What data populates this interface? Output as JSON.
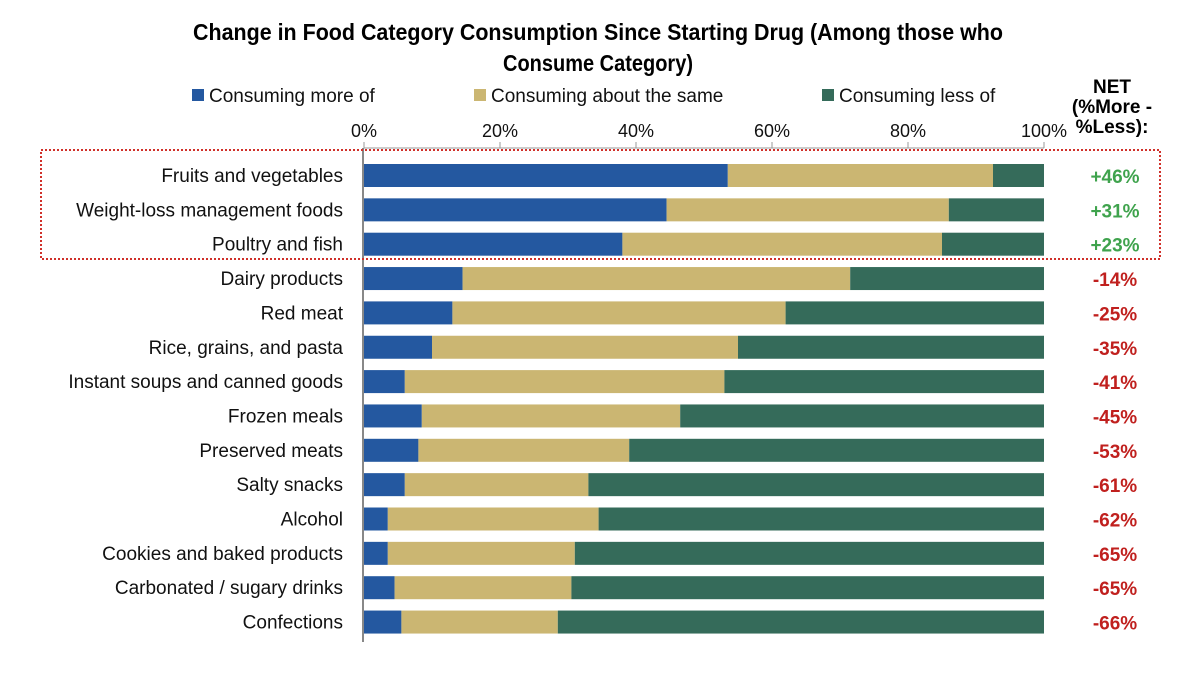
{
  "chart_data": {
    "type": "bar",
    "orientation": "horizontal",
    "stacked": true,
    "title_lines": [
      "Change in Food Category Consumption Since Starting Drug (Among those who",
      "Consume Category)"
    ],
    "xlabel": "",
    "ylabel": "",
    "xlim": [
      0,
      100
    ],
    "x_ticks": [
      "0%",
      "20%",
      "40%",
      "60%",
      "80%",
      "100%"
    ],
    "legend_position": "top",
    "grid": false,
    "categories": [
      "Fruits and vegetables",
      "Weight-loss management foods",
      "Poultry and fish",
      "Dairy products",
      "Red meat",
      "Rice, grains, and pasta",
      "Instant soups and canned goods",
      "Frozen meals",
      "Preserved meats",
      "Salty snacks",
      "Alcohol",
      "Cookies and baked products",
      "Carbonated / sugary drinks",
      "Confections"
    ],
    "series": [
      {
        "name": "Consuming more of",
        "color": "#2458a0",
        "values": [
          53.5,
          44.5,
          38,
          14.5,
          13,
          10,
          6,
          8.5,
          8,
          6,
          3.5,
          3.5,
          4.5,
          5.5
        ]
      },
      {
        "name": "Consuming about the same",
        "color": "#cbb672",
        "values": [
          39,
          41.5,
          47,
          57,
          49,
          45,
          47,
          38,
          31,
          27,
          31,
          27.5,
          26,
          23
        ]
      },
      {
        "name": "Consuming less of",
        "color": "#356b5a",
        "values": [
          7.5,
          14,
          15,
          28.5,
          38,
          45,
          47,
          53.5,
          61,
          67,
          65.5,
          69,
          69.5,
          71.5
        ]
      }
    ],
    "net_header": [
      "NET",
      "(%More -",
      "%Less):"
    ],
    "net_labels": [
      "+46%",
      "+31%",
      "+23%",
      "-14%",
      "-25%",
      "-35%",
      "-41%",
      "-45%",
      "-53%",
      "-61%",
      "-62%",
      "-65%",
      "-65%",
      "-66%"
    ],
    "net_colors": {
      "positive": "#3fa34d",
      "negative": "#c0201e"
    },
    "highlight_box_color": "#d0302a",
    "highlighted_categories": [
      "Fruits and vegetables",
      "Weight-loss management foods",
      "Poultry and fish"
    ]
  }
}
